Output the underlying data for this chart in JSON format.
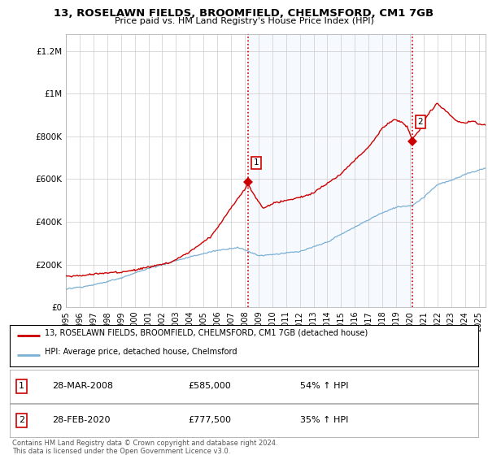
{
  "title_line1": "13, ROSELAWN FIELDS, BROOMFIELD, CHELMSFORD, CM1 7GB",
  "title_line2": "Price paid vs. HM Land Registry's House Price Index (HPI)",
  "ylabel_ticks": [
    "£0",
    "£200K",
    "£400K",
    "£600K",
    "£800K",
    "£1M",
    "£1.2M"
  ],
  "ytick_values": [
    0,
    200000,
    400000,
    600000,
    800000,
    1000000,
    1200000
  ],
  "ylim": [
    0,
    1280000
  ],
  "xlim_start": 1995.0,
  "xlim_end": 2025.5,
  "red_line_color": "#cc0000",
  "blue_line_color": "#7bafd4",
  "vline_color": "#cc0000",
  "shade_color": "#ddeeff",
  "grid_color": "#cccccc",
  "background_color": "#ffffff",
  "legend_line1": "13, ROSELAWN FIELDS, BROOMFIELD, CHELMSFORD, CM1 7GB (detached house)",
  "legend_line2": "HPI: Average price, detached house, Chelmsford",
  "point1_x": 2008.24,
  "point1_y": 585000,
  "point1_label": "1",
  "point1_date": "28-MAR-2008",
  "point1_price": "£585,000",
  "point1_hpi": "54% ↑ HPI",
  "point2_x": 2020.16,
  "point2_y": 777500,
  "point2_label": "2",
  "point2_date": "28-FEB-2020",
  "point2_price": "£777,500",
  "point2_hpi": "35% ↑ HPI",
  "footer_text": "Contains HM Land Registry data © Crown copyright and database right 2024.\nThis data is licensed under the Open Government Licence v3.0.",
  "xtick_years": [
    1995,
    1996,
    1997,
    1998,
    1999,
    2000,
    2001,
    2002,
    2003,
    2004,
    2005,
    2006,
    2007,
    2008,
    2009,
    2010,
    2011,
    2012,
    2013,
    2014,
    2015,
    2016,
    2017,
    2018,
    2019,
    2020,
    2021,
    2022,
    2023,
    2024,
    2025
  ]
}
